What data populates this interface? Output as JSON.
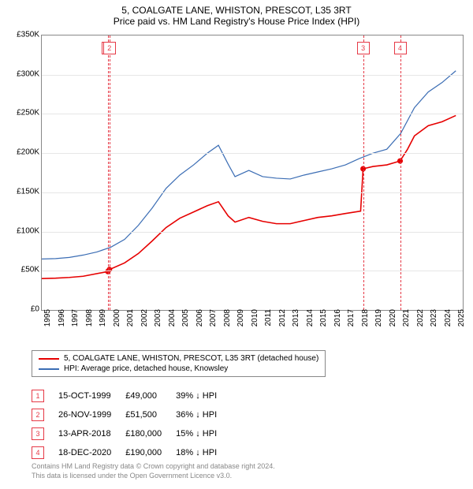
{
  "titles": {
    "line1": "5, COALGATE LANE, WHISTON, PRESCOT, L35 3RT",
    "line2": "Price paid vs. HM Land Registry's House Price Index (HPI)"
  },
  "chart": {
    "type": "line",
    "background_color": "#ffffff",
    "grid_color": "#e6e6e6",
    "plot_border_color": "#888888",
    "x": {
      "min": 1995,
      "max": 2025.5,
      "ticks": [
        1995,
        1996,
        1997,
        1998,
        1999,
        2000,
        2001,
        2002,
        2003,
        2004,
        2005,
        2006,
        2007,
        2008,
        2009,
        2010,
        2011,
        2012,
        2013,
        2014,
        2015,
        2016,
        2017,
        2018,
        2019,
        2020,
        2021,
        2022,
        2023,
        2024,
        2025
      ]
    },
    "y": {
      "min": 0,
      "max": 350000,
      "ticks": [
        0,
        50000,
        100000,
        150000,
        200000,
        250000,
        300000,
        350000
      ],
      "tick_labels": [
        "£0",
        "£50K",
        "£100K",
        "£150K",
        "£200K",
        "£250K",
        "£300K",
        "£350K"
      ]
    },
    "series": [
      {
        "name": "5, COALGATE LANE, WHISTON, PRESCOT, L35 3RT (detached house)",
        "color": "#e60000",
        "width": 1.6,
        "points": [
          [
            1995,
            40000
          ],
          [
            1996,
            40500
          ],
          [
            1997,
            41500
          ],
          [
            1998,
            43000
          ],
          [
            1999.8,
            49000
          ],
          [
            1999.9,
            51500
          ],
          [
            2001,
            60000
          ],
          [
            2002,
            72000
          ],
          [
            2003,
            88000
          ],
          [
            2004,
            105000
          ],
          [
            2005,
            117000
          ],
          [
            2006,
            125000
          ],
          [
            2007,
            133000
          ],
          [
            2007.8,
            138000
          ],
          [
            2008.5,
            120000
          ],
          [
            2009,
            112000
          ],
          [
            2010,
            118000
          ],
          [
            2011,
            113000
          ],
          [
            2012,
            110000
          ],
          [
            2013,
            110000
          ],
          [
            2014,
            114000
          ],
          [
            2015,
            118000
          ],
          [
            2016,
            120000
          ],
          [
            2017,
            123000
          ],
          [
            2018.1,
            126000
          ],
          [
            2018.28,
            180000
          ],
          [
            2019,
            183000
          ],
          [
            2020,
            185000
          ],
          [
            2020.96,
            190000
          ],
          [
            2021.5,
            205000
          ],
          [
            2022,
            222000
          ],
          [
            2023,
            235000
          ],
          [
            2024,
            240000
          ],
          [
            2025,
            248000
          ]
        ]
      },
      {
        "name": "HPI: Average price, detached house, Knowsley",
        "color": "#3b6db4",
        "width": 1.2,
        "points": [
          [
            1995,
            65000
          ],
          [
            1996,
            65500
          ],
          [
            1997,
            67000
          ],
          [
            1998,
            70000
          ],
          [
            1999,
            74000
          ],
          [
            2000,
            80000
          ],
          [
            2001,
            90000
          ],
          [
            2002,
            108000
          ],
          [
            2003,
            130000
          ],
          [
            2004,
            155000
          ],
          [
            2005,
            172000
          ],
          [
            2006,
            185000
          ],
          [
            2007,
            200000
          ],
          [
            2007.8,
            210000
          ],
          [
            2008.5,
            186000
          ],
          [
            2009,
            170000
          ],
          [
            2010,
            178000
          ],
          [
            2011,
            170000
          ],
          [
            2012,
            168000
          ],
          [
            2013,
            167000
          ],
          [
            2014,
            172000
          ],
          [
            2015,
            176000
          ],
          [
            2016,
            180000
          ],
          [
            2017,
            185000
          ],
          [
            2018,
            193000
          ],
          [
            2019,
            200000
          ],
          [
            2020,
            205000
          ],
          [
            2021,
            225000
          ],
          [
            2022,
            258000
          ],
          [
            2023,
            278000
          ],
          [
            2024,
            290000
          ],
          [
            2025,
            305000
          ]
        ]
      }
    ],
    "markers": [
      {
        "n": "1",
        "x": 1999.79,
        "y": 49000
      },
      {
        "n": "2",
        "x": 1999.9,
        "y": 51500
      },
      {
        "n": "3",
        "x": 2018.28,
        "y": 180000
      },
      {
        "n": "4",
        "x": 2020.96,
        "y": 190000
      }
    ],
    "marker_line_color": "#e63946",
    "marker_dot_color": "#e60000",
    "marker_dot_radius": 3.5
  },
  "table": {
    "rows": [
      {
        "n": "1",
        "date": "15-OCT-1999",
        "price": "£49,000",
        "delta": "39% ↓ HPI"
      },
      {
        "n": "2",
        "date": "26-NOV-1999",
        "price": "£51,500",
        "delta": "36% ↓ HPI"
      },
      {
        "n": "3",
        "date": "13-APR-2018",
        "price": "£180,000",
        "delta": "15% ↓ HPI"
      },
      {
        "n": "4",
        "date": "18-DEC-2020",
        "price": "£190,000",
        "delta": "18% ↓ HPI"
      }
    ]
  },
  "footer": {
    "line1": "Contains HM Land Registry data © Crown copyright and database right 2024.",
    "line2": "This data is licensed under the Open Government Licence v3.0."
  }
}
